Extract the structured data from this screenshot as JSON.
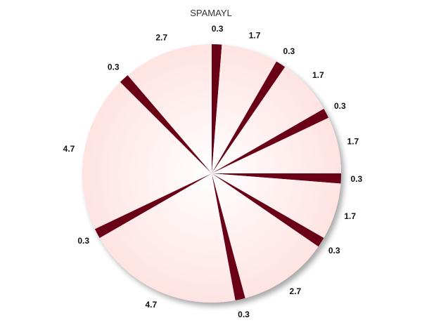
{
  "chart_data": {
    "type": "pie",
    "title": "SPAMAYL",
    "start_angle_deg": 90,
    "direction": "clockwise",
    "colors": {
      "light_center": "#ffffff",
      "light_edge": "#ffe3e3",
      "dark": "#6b0018"
    },
    "slices": [
      {
        "label": "0.3",
        "value": 0.3,
        "kind": "dark"
      },
      {
        "label": "1.7",
        "value": 1.7,
        "kind": "light"
      },
      {
        "label": "0.3",
        "value": 0.3,
        "kind": "dark"
      },
      {
        "label": "1.7",
        "value": 1.7,
        "kind": "light"
      },
      {
        "label": "0.3",
        "value": 0.3,
        "kind": "dark"
      },
      {
        "label": "1.7",
        "value": 1.7,
        "kind": "light"
      },
      {
        "label": "0.3",
        "value": 0.3,
        "kind": "dark"
      },
      {
        "label": "1.7",
        "value": 1.7,
        "kind": "light"
      },
      {
        "label": "0.3",
        "value": 0.3,
        "kind": "dark"
      },
      {
        "label": "2.7",
        "value": 2.7,
        "kind": "light"
      },
      {
        "label": "0.3",
        "value": 0.3,
        "kind": "dark"
      },
      {
        "label": "4.7",
        "value": 4.7,
        "kind": "light"
      },
      {
        "label": "0.3",
        "value": 0.3,
        "kind": "dark"
      },
      {
        "label": "4.7",
        "value": 4.7,
        "kind": "light"
      },
      {
        "label": "0.3",
        "value": 0.3,
        "kind": "dark"
      },
      {
        "label": "2.7",
        "value": 2.7,
        "kind": "light"
      }
    ]
  }
}
